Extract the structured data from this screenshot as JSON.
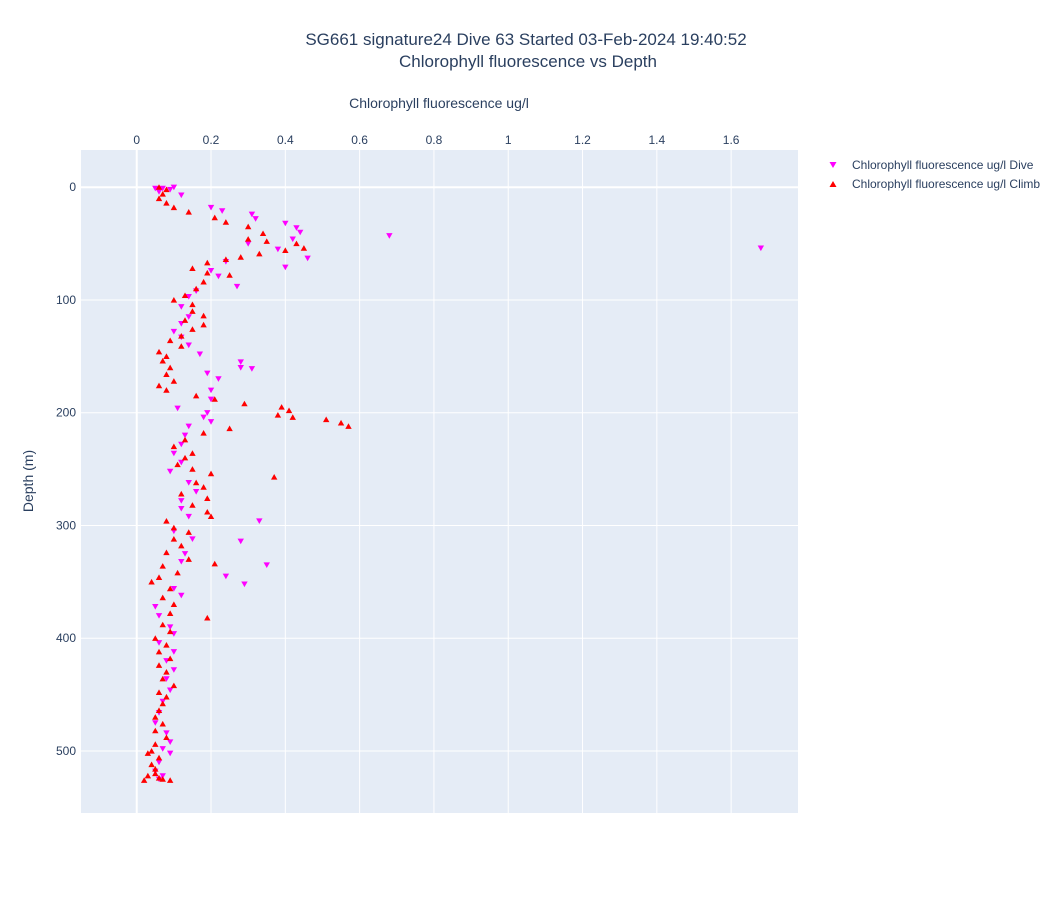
{
  "chart_data": {
    "type": "scatter",
    "title": "SG661 signature24 Dive 63 Started 03-Feb-2024 19:40:52",
    "subtitle": "Chlorophyll fluorescence vs Depth",
    "xlabel": "Chlorophyll fluorescence ug/l",
    "ylabel": "Depth (m)",
    "xlim": [
      -0.15,
      1.78
    ],
    "ylim": [
      555,
      -33
    ],
    "x_axis_position": "top",
    "y_axis_reversed": true,
    "grid": true,
    "legend_position": "top-right",
    "x_ticks": [
      "0",
      "0.2",
      "0.4",
      "0.6",
      "0.8",
      "1",
      "1.2",
      "1.4",
      "1.6"
    ],
    "x_tick_values": [
      0,
      0.2,
      0.4,
      0.6,
      0.8,
      1,
      1.2,
      1.4,
      1.6
    ],
    "y_ticks": [
      "0",
      "100",
      "200",
      "300",
      "400",
      "500"
    ],
    "y_tick_values": [
      0,
      100,
      200,
      300,
      400,
      500
    ],
    "colors": {
      "plot_bg": "#e5ecf6",
      "grid": "#ffffff",
      "text": "#2a3f5f"
    },
    "series": [
      {
        "name": "Chlorophyll fluorescence ug/l Dive",
        "marker": "triangle-down",
        "color": "#ff00ff",
        "points": [
          [
            0.05,
            1
          ],
          [
            0.07,
            1
          ],
          [
            0.09,
            2
          ],
          [
            0.1,
            0
          ],
          [
            0.06,
            4
          ],
          [
            0.12,
            7
          ],
          [
            0.2,
            18
          ],
          [
            0.23,
            21
          ],
          [
            0.31,
            24
          ],
          [
            0.32,
            28
          ],
          [
            0.4,
            32
          ],
          [
            0.43,
            36
          ],
          [
            0.44,
            40
          ],
          [
            0.68,
            43
          ],
          [
            0.42,
            46
          ],
          [
            0.3,
            50
          ],
          [
            1.68,
            54
          ],
          [
            0.38,
            55
          ],
          [
            0.46,
            63
          ],
          [
            0.4,
            71
          ],
          [
            0.24,
            66
          ],
          [
            0.2,
            74
          ],
          [
            0.22,
            79
          ],
          [
            0.27,
            88
          ],
          [
            0.16,
            92
          ],
          [
            0.14,
            97
          ],
          [
            0.12,
            106
          ],
          [
            0.14,
            115
          ],
          [
            0.12,
            121
          ],
          [
            0.1,
            128
          ],
          [
            0.12,
            133
          ],
          [
            0.14,
            140
          ],
          [
            0.17,
            148
          ],
          [
            0.28,
            155
          ],
          [
            0.28,
            160
          ],
          [
            0.19,
            165
          ],
          [
            0.22,
            170
          ],
          [
            0.31,
            161
          ],
          [
            0.2,
            180
          ],
          [
            0.2,
            188
          ],
          [
            0.11,
            196
          ],
          [
            0.19,
            200
          ],
          [
            0.18,
            204
          ],
          [
            0.2,
            208
          ],
          [
            0.14,
            212
          ],
          [
            0.13,
            220
          ],
          [
            0.12,
            228
          ],
          [
            0.1,
            236
          ],
          [
            0.12,
            244
          ],
          [
            0.09,
            252
          ],
          [
            0.14,
            262
          ],
          [
            0.16,
            270
          ],
          [
            0.12,
            278
          ],
          [
            0.12,
            285
          ],
          [
            0.14,
            292
          ],
          [
            0.33,
            296
          ],
          [
            0.1,
            305
          ],
          [
            0.15,
            312
          ],
          [
            0.28,
            314
          ],
          [
            0.13,
            325
          ],
          [
            0.12,
            332
          ],
          [
            0.35,
            335
          ],
          [
            0.24,
            345
          ],
          [
            0.29,
            352
          ],
          [
            0.1,
            356
          ],
          [
            0.12,
            362
          ],
          [
            0.05,
            372
          ],
          [
            0.06,
            380
          ],
          [
            0.09,
            390
          ],
          [
            0.1,
            396
          ],
          [
            0.06,
            404
          ],
          [
            0.1,
            412
          ],
          [
            0.08,
            420
          ],
          [
            0.1,
            428
          ],
          [
            0.08,
            436
          ],
          [
            0.09,
            446
          ],
          [
            0.07,
            456
          ],
          [
            0.06,
            466
          ],
          [
            0.05,
            475
          ],
          [
            0.08,
            484
          ],
          [
            0.09,
            492
          ],
          [
            0.07,
            498
          ],
          [
            0.09,
            502
          ],
          [
            0.06,
            510
          ],
          [
            0.05,
            518
          ],
          [
            0.07,
            522
          ],
          [
            0.06,
            525
          ]
        ]
      },
      {
        "name": "Chlorophyll fluorescence ug/l Climb",
        "marker": "triangle-up",
        "color": "#ff0000",
        "points": [
          [
            0.06,
            0
          ],
          [
            0.08,
            2
          ],
          [
            0.07,
            6
          ],
          [
            0.06,
            10
          ],
          [
            0.08,
            14
          ],
          [
            0.1,
            18
          ],
          [
            0.14,
            22
          ],
          [
            0.21,
            27
          ],
          [
            0.24,
            31
          ],
          [
            0.3,
            35
          ],
          [
            0.34,
            41
          ],
          [
            0.3,
            46
          ],
          [
            0.35,
            48
          ],
          [
            0.43,
            50
          ],
          [
            0.45,
            54
          ],
          [
            0.4,
            56
          ],
          [
            0.33,
            59
          ],
          [
            0.28,
            62
          ],
          [
            0.24,
            64
          ],
          [
            0.19,
            67
          ],
          [
            0.15,
            72
          ],
          [
            0.19,
            76
          ],
          [
            0.25,
            78
          ],
          [
            0.18,
            84
          ],
          [
            0.16,
            90
          ],
          [
            0.13,
            96
          ],
          [
            0.1,
            100
          ],
          [
            0.15,
            104
          ],
          [
            0.15,
            110
          ],
          [
            0.18,
            114
          ],
          [
            0.13,
            118
          ],
          [
            0.18,
            122
          ],
          [
            0.15,
            126
          ],
          [
            0.12,
            132
          ],
          [
            0.09,
            136
          ],
          [
            0.12,
            141
          ],
          [
            0.06,
            146
          ],
          [
            0.08,
            150
          ],
          [
            0.07,
            154
          ],
          [
            0.09,
            160
          ],
          [
            0.08,
            166
          ],
          [
            0.1,
            172
          ],
          [
            0.06,
            176
          ],
          [
            0.08,
            180
          ],
          [
            0.16,
            185
          ],
          [
            0.21,
            188
          ],
          [
            0.29,
            192
          ],
          [
            0.39,
            195
          ],
          [
            0.41,
            198
          ],
          [
            0.38,
            202
          ],
          [
            0.42,
            204
          ],
          [
            0.51,
            206
          ],
          [
            0.55,
            209
          ],
          [
            0.57,
            212
          ],
          [
            0.25,
            214
          ],
          [
            0.18,
            218
          ],
          [
            0.13,
            224
          ],
          [
            0.1,
            230
          ],
          [
            0.15,
            236
          ],
          [
            0.13,
            240
          ],
          [
            0.11,
            246
          ],
          [
            0.15,
            250
          ],
          [
            0.2,
            254
          ],
          [
            0.37,
            257
          ],
          [
            0.16,
            262
          ],
          [
            0.18,
            266
          ],
          [
            0.12,
            272
          ],
          [
            0.19,
            276
          ],
          [
            0.15,
            282
          ],
          [
            0.19,
            288
          ],
          [
            0.2,
            292
          ],
          [
            0.08,
            296
          ],
          [
            0.1,
            302
          ],
          [
            0.14,
            306
          ],
          [
            0.1,
            312
          ],
          [
            0.12,
            318
          ],
          [
            0.08,
            324
          ],
          [
            0.14,
            330
          ],
          [
            0.07,
            336
          ],
          [
            0.11,
            342
          ],
          [
            0.06,
            346
          ],
          [
            0.04,
            350
          ],
          [
            0.21,
            334
          ],
          [
            0.09,
            356
          ],
          [
            0.07,
            364
          ],
          [
            0.1,
            370
          ],
          [
            0.09,
            378
          ],
          [
            0.19,
            382
          ],
          [
            0.07,
            388
          ],
          [
            0.09,
            394
          ],
          [
            0.05,
            400
          ],
          [
            0.08,
            406
          ],
          [
            0.06,
            412
          ],
          [
            0.09,
            418
          ],
          [
            0.06,
            424
          ],
          [
            0.08,
            430
          ],
          [
            0.07,
            436
          ],
          [
            0.1,
            442
          ],
          [
            0.06,
            448
          ],
          [
            0.08,
            452
          ],
          [
            0.07,
            458
          ],
          [
            0.06,
            464
          ],
          [
            0.05,
            470
          ],
          [
            0.07,
            476
          ],
          [
            0.05,
            482
          ],
          [
            0.08,
            488
          ],
          [
            0.05,
            494
          ],
          [
            0.04,
            500
          ],
          [
            0.03,
            502
          ],
          [
            0.06,
            506
          ],
          [
            0.04,
            512
          ],
          [
            0.05,
            516
          ],
          [
            0.05,
            520
          ],
          [
            0.03,
            522
          ],
          [
            0.06,
            524
          ],
          [
            0.02,
            526
          ],
          [
            0.09,
            526
          ],
          [
            0.07,
            525
          ]
        ]
      }
    ]
  }
}
